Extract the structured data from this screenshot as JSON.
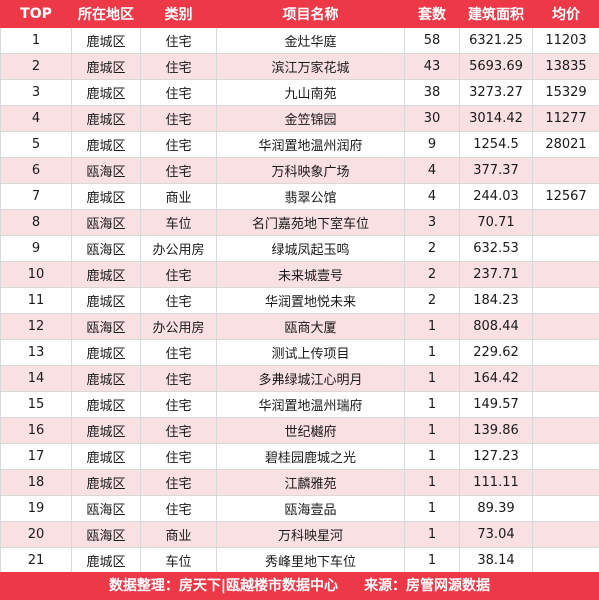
{
  "table": {
    "headers": [
      "TOP",
      "所在地区",
      "类别",
      "项目名称",
      "套数",
      "建筑面积",
      "均价"
    ],
    "rows": [
      [
        "1",
        "鹿城区",
        "住宅",
        "金灶华庭",
        "58",
        "6321.25",
        "11203"
      ],
      [
        "2",
        "鹿城区",
        "住宅",
        "滨江万家花城",
        "43",
        "5693.69",
        "13835"
      ],
      [
        "3",
        "鹿城区",
        "住宅",
        "九山南苑",
        "38",
        "3273.27",
        "15329"
      ],
      [
        "4",
        "鹿城区",
        "住宅",
        "金笠锦园",
        "30",
        "3014.42",
        "11277"
      ],
      [
        "5",
        "鹿城区",
        "住宅",
        "华润置地温州润府",
        "9",
        "1254.5",
        "28021"
      ],
      [
        "6",
        "瓯海区",
        "住宅",
        "万科映象广场",
        "4",
        "377.37",
        ""
      ],
      [
        "7",
        "鹿城区",
        "商业",
        "翡翠公馆",
        "4",
        "244.03",
        "12567"
      ],
      [
        "8",
        "瓯海区",
        "车位",
        "名门嘉苑地下室车位",
        "3",
        "70.71",
        ""
      ],
      [
        "9",
        "瓯海区",
        "办公用房",
        "绿城凤起玉鸣",
        "2",
        "632.53",
        ""
      ],
      [
        "10",
        "鹿城区",
        "住宅",
        "未来城壹号",
        "2",
        "237.71",
        ""
      ],
      [
        "11",
        "鹿城区",
        "住宅",
        "华润置地悦未来",
        "2",
        "184.23",
        ""
      ],
      [
        "12",
        "瓯海区",
        "办公用房",
        "瓯商大厦",
        "1",
        "808.44",
        ""
      ],
      [
        "13",
        "鹿城区",
        "住宅",
        "测试上传项目",
        "1",
        "229.62",
        ""
      ],
      [
        "14",
        "鹿城区",
        "住宅",
        "多弗绿城江心明月",
        "1",
        "164.42",
        ""
      ],
      [
        "15",
        "鹿城区",
        "住宅",
        "华润置地温州瑞府",
        "1",
        "149.57",
        ""
      ],
      [
        "16",
        "鹿城区",
        "住宅",
        "世纪樾府",
        "1",
        "139.86",
        ""
      ],
      [
        "17",
        "鹿城区",
        "住宅",
        "碧桂园鹿城之光",
        "1",
        "127.23",
        ""
      ],
      [
        "18",
        "鹿城区",
        "住宅",
        "江麟雅苑",
        "1",
        "111.11",
        ""
      ],
      [
        "19",
        "瓯海区",
        "住宅",
        "瓯海壹品",
        "1",
        "89.39",
        ""
      ],
      [
        "20",
        "瓯海区",
        "商业",
        "万科映星河",
        "1",
        "73.04",
        ""
      ],
      [
        "21",
        "鹿城区",
        "车位",
        "秀峰里地下车位",
        "1",
        "38.14",
        ""
      ]
    ]
  },
  "footer": {
    "organizer": "数据整理：房天下|瓯越楼市数据中心",
    "source": "来源：房管网源数据"
  },
  "colors": {
    "header_bg": "#ec3847",
    "stripe_bg": "#f9e0e3"
  }
}
